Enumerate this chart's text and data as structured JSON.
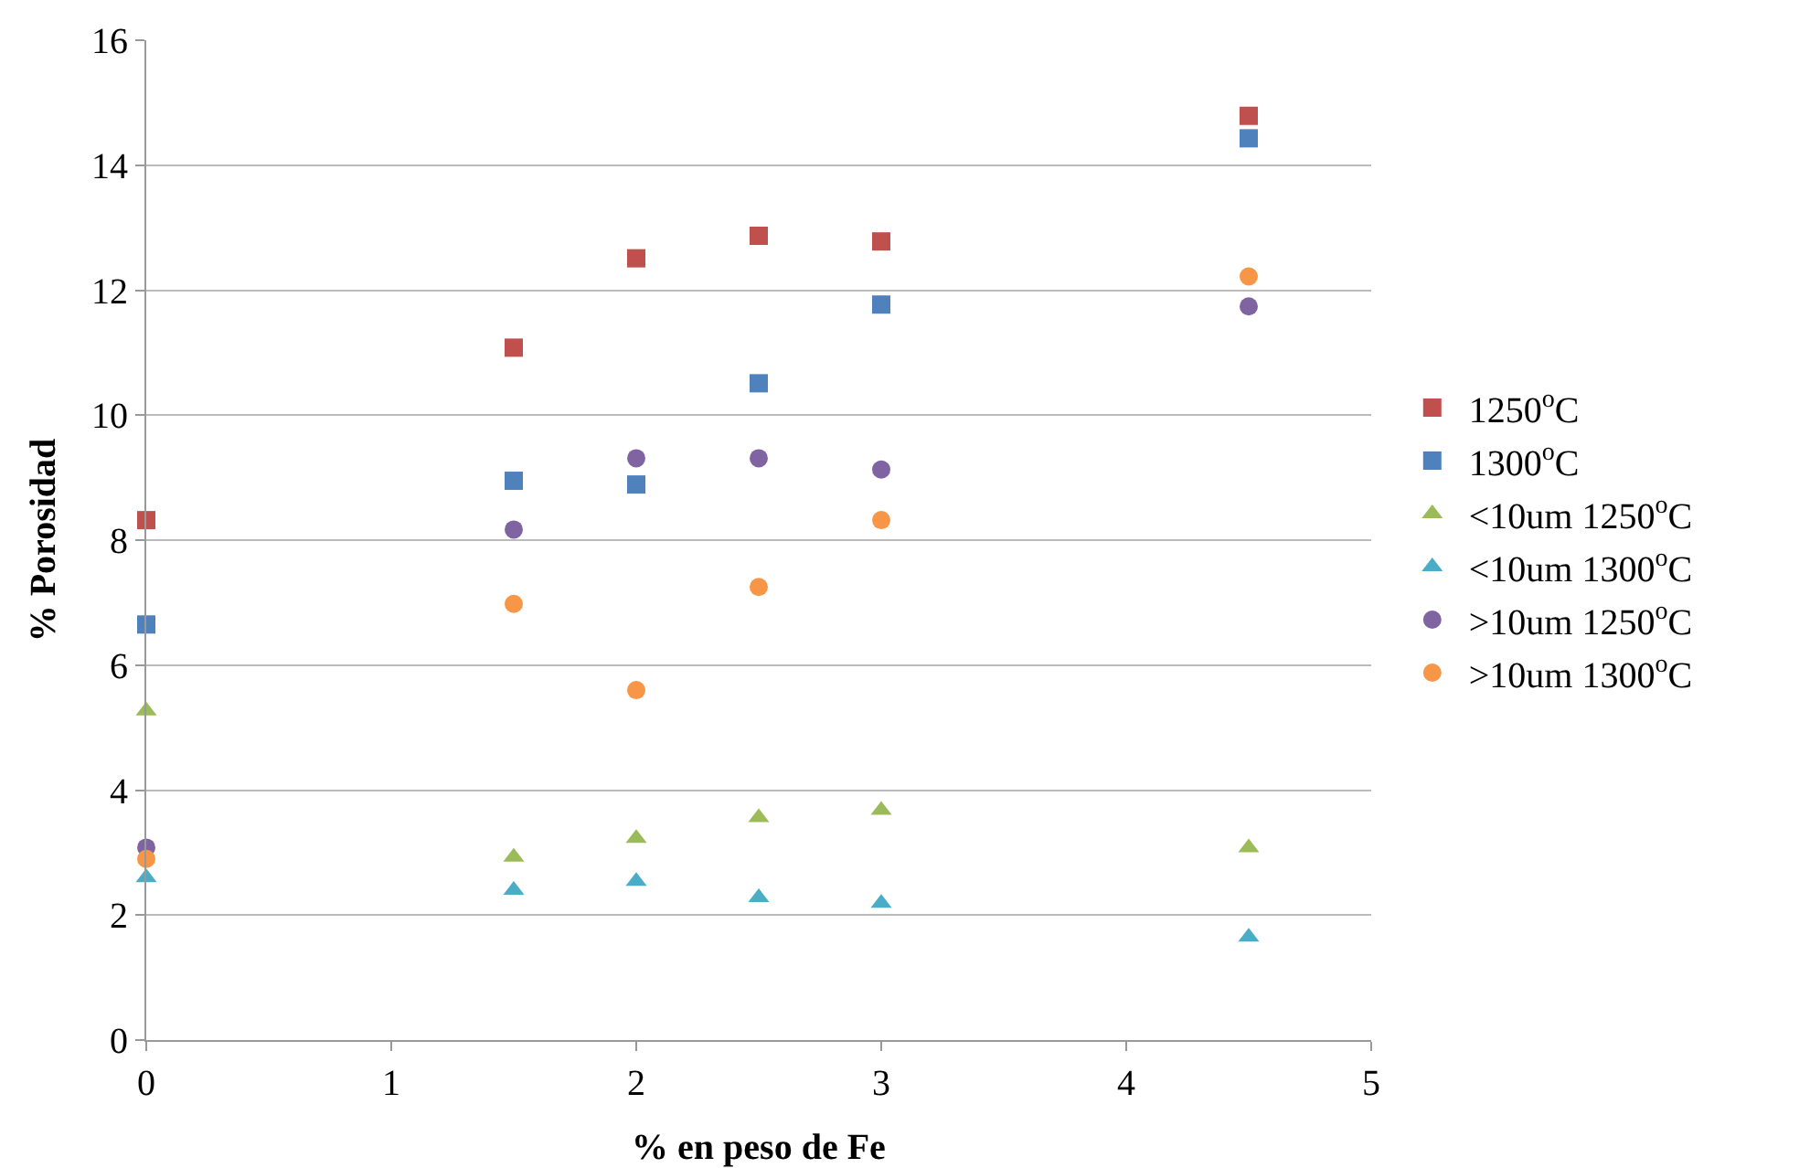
{
  "chart_data": {
    "type": "scatter",
    "xlabel": "% en peso de Fe",
    "ylabel": "% Porosidad",
    "x": [
      0,
      1.5,
      2,
      2.5,
      3,
      4.5
    ],
    "series": [
      {
        "name": "1250$^{o}$C",
        "color": "#c0504d",
        "marker": "square",
        "values": [
          8.32,
          11.08,
          12.51,
          12.87,
          12.78,
          14.79
        ]
      },
      {
        "name": "1300$^{o}$C",
        "color": "#4f81bd",
        "marker": "square",
        "values": [
          6.65,
          8.95,
          8.89,
          10.51,
          11.77,
          14.43
        ]
      },
      {
        "name": "<10um 1250$^{o}$C",
        "color": "#9bbb59",
        "marker": "triangle",
        "values": [
          5.27,
          2.93,
          3.23,
          3.56,
          3.68,
          3.08
        ]
      },
      {
        "name": "<10um 1300$^{o}$C",
        "color": "#4bacc6",
        "marker": "triangle",
        "values": [
          2.6,
          2.4,
          2.54,
          2.28,
          2.19,
          1.65
        ]
      },
      {
        "name": ">10um 1250$^{o}$C",
        "color": "#8064a2",
        "marker": "circle",
        "values": [
          3.08,
          8.17,
          9.31,
          9.31,
          9.13,
          11.74
        ]
      },
      {
        "name": ">10um 1300$^{o}$C",
        "color": "#f79646",
        "marker": "circle",
        "values": [
          2.9,
          6.98,
          5.6,
          7.25,
          8.32,
          12.22
        ]
      }
    ],
    "xlim": [
      0,
      5
    ],
    "xticks": [
      0,
      1,
      2,
      3,
      4,
      5
    ],
    "ylim": [
      0,
      16
    ],
    "yticks": [
      0,
      2,
      4,
      6,
      8,
      10,
      12,
      14,
      16
    ],
    "grid": "y",
    "legend": "right"
  }
}
